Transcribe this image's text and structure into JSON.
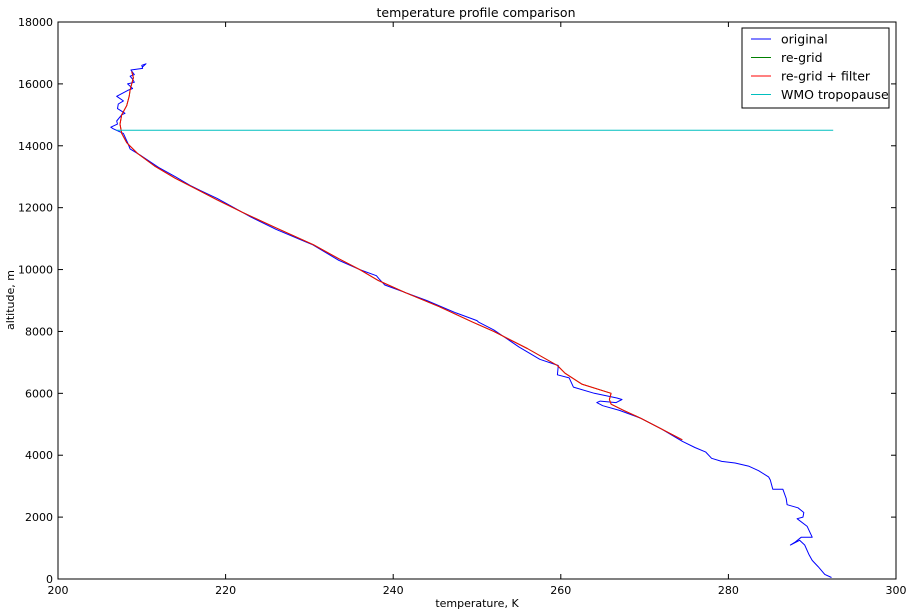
{
  "chart_data": {
    "type": "line",
    "title": "temperature profile comparison",
    "xlabel": "temperature, K",
    "ylabel": "altitude, m",
    "xlim": [
      200,
      300
    ],
    "ylim": [
      0,
      18000
    ],
    "xticks": [
      200,
      220,
      240,
      260,
      280,
      300
    ],
    "yticks": [
      0,
      2000,
      4000,
      6000,
      8000,
      10000,
      12000,
      14000,
      16000,
      18000
    ],
    "grid": false,
    "legend_position": "top-right",
    "series": [
      {
        "name": "original",
        "color": "#0000ff",
        "x": [
          292.3,
          291.5,
          290.7,
          290.0,
          289.6,
          289.1,
          288.5,
          287.4,
          288.0,
          288.7,
          290.0,
          289.4,
          288.2,
          288.9,
          289.0,
          288.3,
          287.0,
          286.9,
          286.5,
          285.3,
          285.0,
          284.8,
          283.6,
          282.4,
          280.8,
          279.2,
          278.0,
          277.3,
          276.0,
          274.5,
          272.0,
          269.5,
          267.0,
          265.0,
          264.3,
          264.7,
          266.6,
          267.3,
          266.7,
          264.0,
          261.5,
          261.0,
          259.6,
          259.7,
          257.5,
          255.0,
          252.0,
          250.2,
          250.0,
          247.5,
          244.0,
          241.0,
          239.0,
          238.3,
          238.0,
          236.0,
          233.5,
          230.4,
          229.5,
          226.0,
          223.0,
          221.0,
          219.0,
          217.0,
          215.9,
          214.0,
          212.0,
          209.8,
          208.6,
          208.3,
          207.8,
          206.6,
          206.3,
          207.1,
          207.0,
          207.6,
          208.0,
          207.1,
          207.2,
          207.8,
          207.0,
          208.4,
          208.9,
          208.3,
          209.1,
          208.9,
          208.6,
          209.1,
          208.7,
          210.1,
          210.0,
          210.5,
          210.1
        ],
        "y": [
          50,
          150,
          400,
          600,
          800,
          1100,
          1250,
          1100,
          1200,
          1350,
          1350,
          1700,
          1950,
          2000,
          2150,
          2300,
          2400,
          2600,
          2900,
          2900,
          3200,
          3300,
          3500,
          3650,
          3750,
          3800,
          3900,
          4100,
          4250,
          4450,
          4850,
          5200,
          5450,
          5600,
          5700,
          5750,
          5700,
          5800,
          5850,
          6000,
          6200,
          6500,
          6600,
          6900,
          7100,
          7500,
          8050,
          8300,
          8350,
          8600,
          9000,
          9300,
          9500,
          9700,
          9800,
          10000,
          10300,
          10800,
          10900,
          11300,
          11700,
          12000,
          12300,
          12550,
          12700,
          13000,
          13300,
          13700,
          13900,
          14100,
          14400,
          14550,
          14600,
          14700,
          14800,
          15000,
          15050,
          15200,
          15350,
          15450,
          15600,
          15800,
          15850,
          16000,
          16050,
          16150,
          16250,
          16300,
          16450,
          16500,
          16600,
          16650,
          16550
        ]
      },
      {
        "name": "re-grid",
        "color": "#008000",
        "x": [
          274.5,
          272.0,
          269.5,
          267.5,
          266.0,
          265.8,
          266.0,
          262.5,
          260.5,
          259.6,
          256.0,
          252.0,
          249.5,
          245.5,
          241.5,
          238.2,
          236.0,
          233.5,
          230.5,
          226.0,
          222.0,
          219.0,
          216.5,
          214.0,
          211.5,
          209.5,
          208.2,
          207.6,
          207.4,
          207.6,
          208.2,
          208.5,
          208.6,
          208.8,
          209.0,
          208.8
        ],
        "y": [
          4500,
          4850,
          5200,
          5450,
          5650,
          5800,
          6000,
          6300,
          6650,
          6900,
          7450,
          8000,
          8300,
          8800,
          9250,
          9650,
          10000,
          10350,
          10800,
          11350,
          11850,
          12250,
          12600,
          12950,
          13350,
          13750,
          14100,
          14400,
          14700,
          15000,
          15300,
          15600,
          15800,
          16000,
          16200,
          16400
        ]
      },
      {
        "name": "re-grid + filter",
        "color": "#ff0000",
        "x": [
          274.5,
          272.0,
          269.5,
          267.5,
          266.0,
          265.8,
          266.0,
          262.5,
          260.5,
          259.6,
          256.0,
          252.0,
          249.5,
          245.5,
          241.5,
          238.2,
          236.0,
          233.5,
          230.5,
          226.0,
          222.0,
          219.0,
          216.5,
          214.0,
          211.5,
          209.5,
          208.2,
          207.6,
          207.4,
          207.6,
          208.2,
          208.5,
          208.6,
          208.8,
          209.0,
          208.8
        ],
        "y": [
          4500,
          4850,
          5200,
          5450,
          5650,
          5800,
          6000,
          6300,
          6650,
          6900,
          7450,
          8000,
          8300,
          8800,
          9250,
          9650,
          10000,
          10350,
          10800,
          11350,
          11850,
          12250,
          12600,
          12950,
          13350,
          13750,
          14100,
          14400,
          14700,
          15000,
          15300,
          15600,
          15800,
          16000,
          16200,
          16400
        ]
      },
      {
        "name": "WMO tropopause",
        "color": "#00bfbf",
        "x": [
          207.0,
          292.5
        ],
        "y": [
          14500,
          14500
        ]
      }
    ]
  }
}
